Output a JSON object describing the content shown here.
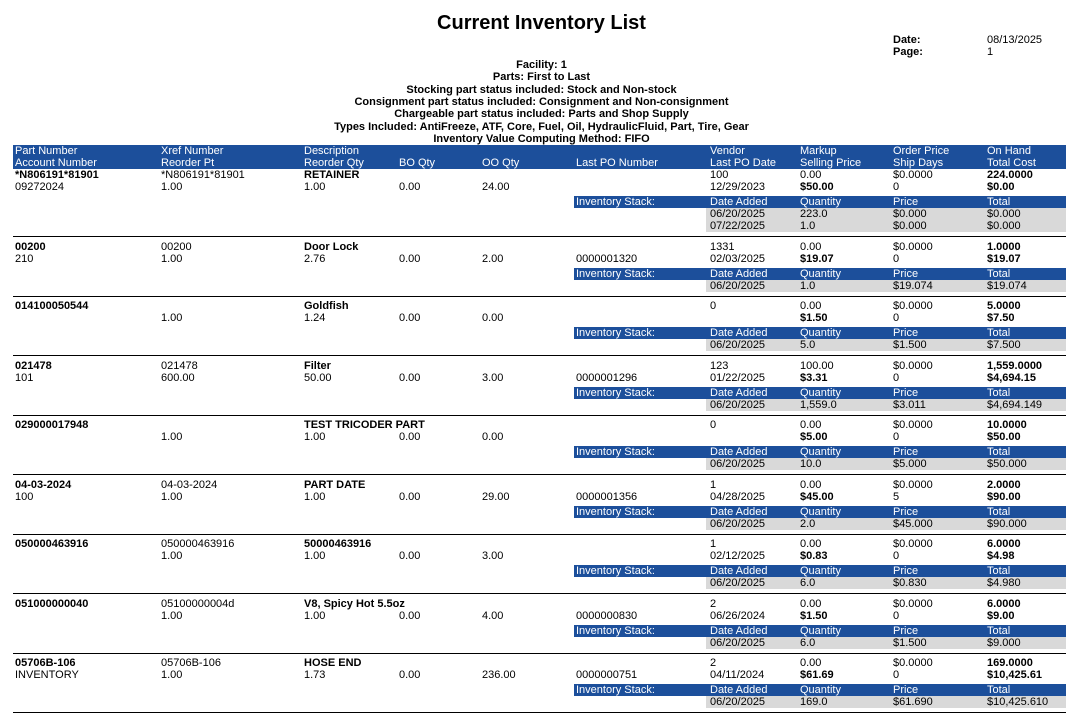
{
  "header": {
    "title": "Current Inventory List",
    "meta": [
      [
        "Date:",
        "08/13/2025"
      ],
      [
        "Page:",
        "1"
      ]
    ],
    "filters": [
      "Facility: 1",
      "Parts: First to Last",
      "Stocking part status included: Stock and Non-stock",
      "Consignment part status included: Consignment and Non-consignment",
      "Chargeable part status included: Parts and Shop Supply",
      "Types Included: AntiFreeze, ATF, Core, Fuel, Oil, HydraulicFluid, Part, Tire, Gear",
      "Inventory Value Computing Method: FIFO"
    ]
  },
  "table": {
    "columns": [
      [
        "Part Number",
        "Account Number"
      ],
      [
        "Xref Number",
        "Reorder Pt"
      ],
      [
        "Description",
        "Reorder Qty"
      ],
      [
        null,
        "BO Qty"
      ],
      [
        null,
        "OO Qty"
      ],
      [
        null,
        "Last PO Number"
      ],
      [
        "Vendor",
        "Last PO Date"
      ],
      [
        "Markup",
        "Selling Price"
      ],
      [
        "Order Price",
        "Ship Days"
      ],
      [
        "On Hand",
        "Total Cost"
      ]
    ],
    "stack_header": [
      "Inventory Stack:",
      "Date Added",
      "Quantity",
      "Price",
      "Total"
    ],
    "records": [
      {
        "line1": [
          "*N806191*81901",
          "*N806191*81901",
          "RETAINER",
          null,
          null,
          null,
          "100",
          "0.00",
          "$0.0000",
          "224.0000"
        ],
        "line2": [
          "09272024",
          "1.00",
          "1.00",
          "0.00",
          "24.00",
          null,
          "12/29/2023",
          "$50.00",
          "0",
          "$0.00"
        ],
        "stack": [
          [
            "06/20/2025",
            "223.0",
            "$0.000",
            "$0.000"
          ],
          [
            "07/22/2025",
            "1.0",
            "$0.000",
            "$0.000"
          ]
        ]
      },
      {
        "line1": [
          "00200",
          "00200",
          "Door Lock",
          null,
          null,
          null,
          "1331",
          "0.00",
          "$0.0000",
          "1.0000"
        ],
        "line2": [
          "210",
          "1.00",
          "2.76",
          "0.00",
          "2.00",
          "0000001320",
          "02/03/2025",
          "$19.07",
          "0",
          "$19.07"
        ],
        "stack": [
          [
            "06/20/2025",
            "1.0",
            "$19.074",
            "$19.074"
          ]
        ]
      },
      {
        "line1": [
          "014100050544",
          null,
          "Goldfish",
          null,
          null,
          null,
          "0",
          "0.00",
          "$0.0000",
          "5.0000"
        ],
        "line2": [
          null,
          "1.00",
          "1.24",
          "0.00",
          "0.00",
          null,
          null,
          "$1.50",
          "0",
          "$7.50"
        ],
        "stack": [
          [
            "06/20/2025",
            "5.0",
            "$1.500",
            "$7.500"
          ]
        ]
      },
      {
        "line1": [
          "021478",
          "021478",
          "Filter",
          null,
          null,
          null,
          "123",
          "100.00",
          "$0.0000",
          "1,559.0000"
        ],
        "line2": [
          "101",
          "600.00",
          "50.00",
          "0.00",
          "3.00",
          "0000001296",
          "01/22/2025",
          "$3.31",
          "0",
          "$4,694.15"
        ],
        "stack": [
          [
            "06/20/2025",
            "1,559.0",
            "$3.011",
            "$4,694.149"
          ]
        ]
      },
      {
        "line1": [
          "029000017948",
          null,
          "TEST TRICODER PART",
          null,
          null,
          null,
          "0",
          "0.00",
          "$0.0000",
          "10.0000"
        ],
        "line2": [
          null,
          "1.00",
          "1.00",
          "0.00",
          "0.00",
          null,
          null,
          "$5.00",
          "0",
          "$50.00"
        ],
        "stack": [
          [
            "06/20/2025",
            "10.0",
            "$5.000",
            "$50.000"
          ]
        ]
      },
      {
        "line1": [
          "04-03-2024",
          "04-03-2024",
          "PART DATE",
          null,
          null,
          null,
          "1",
          "0.00",
          "$0.0000",
          "2.0000"
        ],
        "line2": [
          "100",
          "1.00",
          "1.00",
          "0.00",
          "29.00",
          "0000001356",
          "04/28/2025",
          "$45.00",
          "5",
          "$90.00"
        ],
        "stack": [
          [
            "06/20/2025",
            "2.0",
            "$45.000",
            "$90.000"
          ]
        ]
      },
      {
        "line1": [
          "050000463916",
          "050000463916",
          "50000463916",
          null,
          null,
          null,
          "1",
          "0.00",
          "$0.0000",
          "6.0000"
        ],
        "line2": [
          null,
          "1.00",
          "1.00",
          "0.00",
          "3.00",
          null,
          "02/12/2025",
          "$0.83",
          "0",
          "$4.98"
        ],
        "stack": [
          [
            "06/20/2025",
            "6.0",
            "$0.830",
            "$4.980"
          ]
        ]
      },
      {
        "line1": [
          "051000000040",
          "05100000004d",
          "V8, Spicy Hot 5.5oz",
          null,
          null,
          null,
          "2",
          "0.00",
          "$0.0000",
          "6.0000"
        ],
        "line2": [
          null,
          "1.00",
          "1.00",
          "0.00",
          "4.00",
          "0000000830",
          "06/26/2024",
          "$1.50",
          "0",
          "$9.00"
        ],
        "stack": [
          [
            "06/20/2025",
            "6.0",
            "$1.500",
            "$9.000"
          ]
        ]
      },
      {
        "line1": [
          "05706B-106",
          "05706B-106",
          "HOSE END",
          null,
          null,
          null,
          "2",
          "0.00",
          "$0.0000",
          "169.0000"
        ],
        "line2": [
          "INVENTORY",
          "1.00",
          "1.73",
          "0.00",
          "236.00",
          "0000000751",
          "04/11/2024",
          "$61.69",
          "0",
          "$10,425.61"
        ],
        "stack": [
          [
            "06/20/2025",
            "169.0",
            "$61.690",
            "$10,425.610"
          ]
        ]
      }
    ]
  }
}
